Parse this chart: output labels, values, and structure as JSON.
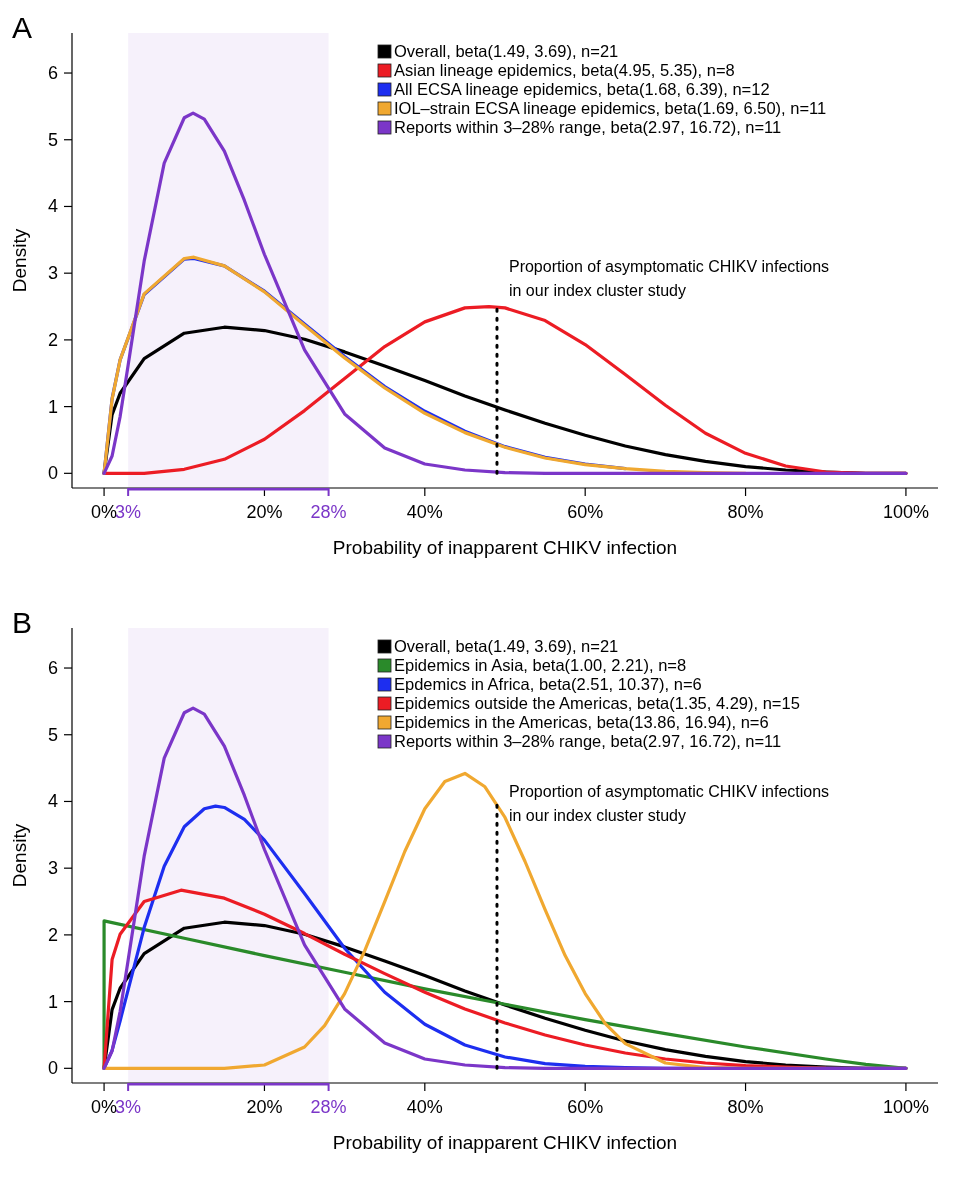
{
  "chart_data": [
    {
      "type": "line",
      "title": "A",
      "xlabel": "Probability of inapparent CHIKV infection",
      "ylabel": "Density",
      "xlim": [
        -4,
        104
      ],
      "ylim": [
        -0.22,
        6.6
      ],
      "xticks": [
        {
          "value": 0,
          "label": "0%"
        },
        {
          "value": 3,
          "label": "3%"
        },
        {
          "value": 20,
          "label": "20%"
        },
        {
          "value": 28,
          "label": "28%"
        },
        {
          "value": 40,
          "label": "40%"
        },
        {
          "value": 60,
          "label": "60%"
        },
        {
          "value": 80,
          "label": "80%"
        },
        {
          "value": 100,
          "label": "100%"
        }
      ],
      "yticks": [
        0,
        1,
        2,
        3,
        4,
        5,
        6
      ],
      "legend": "top right",
      "series": [
        {
          "name": "Overall, beta(1.49, 3.69), n=21",
          "color": "#000000",
          "x": [
            0,
            1,
            2,
            5,
            10,
            15,
            20,
            25,
            30,
            35,
            40,
            45,
            50,
            55,
            60,
            65,
            70,
            75,
            80,
            85,
            90,
            95,
            100
          ],
          "values": [
            0,
            0.88,
            1.2,
            1.72,
            2.1,
            2.19,
            2.14,
            2.01,
            1.82,
            1.61,
            1.39,
            1.16,
            0.95,
            0.75,
            0.57,
            0.41,
            0.28,
            0.18,
            0.1,
            0.05,
            0.02,
            0,
            0
          ]
        },
        {
          "name": "Asian lineage epidemics, beta(4.95, 5.35), n=8",
          "color": "#ec1c24",
          "x": [
            0,
            5,
            10,
            15,
            20,
            25,
            30,
            35,
            40,
            45,
            48,
            50,
            55,
            60,
            65,
            70,
            75,
            80,
            85,
            90,
            95,
            100
          ],
          "values": [
            0,
            0,
            0.06,
            0.21,
            0.51,
            0.94,
            1.42,
            1.9,
            2.27,
            2.48,
            2.5,
            2.48,
            2.29,
            1.93,
            1.48,
            1.02,
            0.6,
            0.3,
            0.11,
            0.02,
            0,
            0
          ]
        },
        {
          "name": "All ECSA lineage epidemics, beta(1.68, 6.39), n=12",
          "color": "#1d2ef0",
          "x": [
            0,
            1,
            2,
            5,
            10,
            11.2,
            15,
            20,
            25,
            30,
            35,
            40,
            45,
            50,
            55,
            60,
            65
          ],
          "values": [
            0,
            1.12,
            1.7,
            2.68,
            3.21,
            3.22,
            3.11,
            2.73,
            2.24,
            1.75,
            1.3,
            0.93,
            0.63,
            0.4,
            0.24,
            0.14,
            0.07
          ]
        },
        {
          "name": "IOL–strain ECSA lineage epidemics, beta(1.69, 6.50), n=11",
          "color": "#f0a830",
          "x": [
            0,
            1,
            2,
            5,
            10,
            11.2,
            15,
            20,
            25,
            30,
            35,
            40,
            45,
            50,
            55,
            60,
            65,
            70,
            75,
            80
          ],
          "values": [
            0,
            1.11,
            1.7,
            2.69,
            3.22,
            3.24,
            3.11,
            2.72,
            2.22,
            1.73,
            1.28,
            0.9,
            0.61,
            0.39,
            0.23,
            0.13,
            0.07,
            0.03,
            0.01,
            0
          ]
        },
        {
          "name": "Reports within 3–28% range, beta(2.97, 16.72), n=11",
          "color": "#7b36c8",
          "x": [
            0,
            1,
            2,
            3,
            5,
            7.5,
            10,
            11.1,
            12.5,
            15,
            17.5,
            20,
            25,
            30,
            35,
            40,
            45,
            50,
            55,
            60,
            80,
            100
          ],
          "values": [
            0,
            0.26,
            0.85,
            1.62,
            3.18,
            4.65,
            5.33,
            5.4,
            5.31,
            4.83,
            4.09,
            3.28,
            1.85,
            0.89,
            0.38,
            0.14,
            0.05,
            0.01,
            0,
            0,
            0,
            0
          ]
        }
      ],
      "ref_lines": [
        {
          "axis": "x",
          "value": 49,
          "label": "Proportion of asymptomatic CHIKV infections\nin our index cluster study",
          "line_style": "dotted",
          "color": "#000000"
        }
      ],
      "bands": [
        {
          "axis": "x",
          "from": 3,
          "to": 28,
          "color": "#7b36c8"
        }
      ]
    },
    {
      "type": "line",
      "title": "B",
      "xlabel": "Probability of inapparent CHIKV infection",
      "ylabel": "Density",
      "xlim": [
        -4,
        104
      ],
      "ylim": [
        -0.22,
        6.6
      ],
      "xticks": [
        {
          "value": 0,
          "label": "0%"
        },
        {
          "value": 3,
          "label": "3%"
        },
        {
          "value": 20,
          "label": "20%"
        },
        {
          "value": 28,
          "label": "28%"
        },
        {
          "value": 40,
          "label": "40%"
        },
        {
          "value": 60,
          "label": "60%"
        },
        {
          "value": 80,
          "label": "80%"
        },
        {
          "value": 100,
          "label": "100%"
        }
      ],
      "yticks": [
        0,
        1,
        2,
        3,
        4,
        5,
        6
      ],
      "legend": "top right",
      "series": [
        {
          "name": "Overall, beta(1.49, 3.69), n=21",
          "color": "#000000",
          "x": [
            0,
            1,
            2,
            5,
            10,
            15,
            20,
            25,
            30,
            35,
            40,
            45,
            50,
            55,
            60,
            65,
            70,
            75,
            80,
            85,
            90,
            95,
            100
          ],
          "values": [
            0,
            0.88,
            1.2,
            1.72,
            2.1,
            2.19,
            2.14,
            2.01,
            1.82,
            1.61,
            1.39,
            1.16,
            0.95,
            0.75,
            0.57,
            0.41,
            0.28,
            0.18,
            0.1,
            0.05,
            0.02,
            0,
            0
          ]
        },
        {
          "name": "Epidemics in Asia, beta(1.00, 2.21), n=8",
          "color": "#2a8a2a",
          "x": [
            0,
            0,
            10,
            20,
            30,
            40,
            50,
            60,
            70,
            80,
            90,
            95,
            100
          ],
          "values": [
            0,
            2.21,
            1.95,
            1.69,
            1.44,
            1.19,
            0.96,
            0.73,
            0.52,
            0.32,
            0.14,
            0.06,
            0
          ]
        },
        {
          "name": "Epdemics in Africa, beta(2.51, 10.37), n=6",
          "color": "#1d2ef0",
          "x": [
            0,
            1,
            2,
            5,
            7.5,
            10,
            12.5,
            13.9,
            15,
            17.5,
            20,
            25,
            30,
            35,
            40,
            45,
            50,
            55,
            60,
            65,
            70,
            80,
            100
          ],
          "values": [
            0,
            0.27,
            0.71,
            2.11,
            3.03,
            3.62,
            3.89,
            3.93,
            3.91,
            3.73,
            3.42,
            2.62,
            1.8,
            1.14,
            0.66,
            0.35,
            0.17,
            0.07,
            0.03,
            0.01,
            0,
            0,
            0
          ]
        },
        {
          "name": "Epidemics outside the Americas, beta(1.35, 4.29), n=15",
          "color": "#ec1c24",
          "x": [
            0,
            1,
            2,
            5,
            9.6,
            15,
            20,
            25,
            30,
            35,
            40,
            45,
            50,
            55,
            60,
            65,
            70,
            75,
            80,
            85,
            90
          ],
          "values": [
            0,
            1.63,
            2.01,
            2.5,
            2.67,
            2.55,
            2.31,
            2.02,
            1.71,
            1.42,
            1.14,
            0.89,
            0.68,
            0.5,
            0.35,
            0.23,
            0.14,
            0.08,
            0.04,
            0.02,
            0
          ]
        },
        {
          "name": "Epidemics in the Americas, beta(13.86, 16.94), n=6",
          "color": "#f0a830",
          "x": [
            0,
            10,
            15,
            20,
            25,
            27.5,
            30,
            32.5,
            35,
            37.5,
            40,
            42.5,
            45,
            47.5,
            50,
            52.5,
            55,
            57.5,
            60,
            62.5,
            65,
            70,
            75,
            80,
            100
          ],
          "values": [
            0,
            0,
            0,
            0.05,
            0.32,
            0.64,
            1.12,
            1.76,
            2.5,
            3.25,
            3.89,
            4.3,
            4.42,
            4.22,
            3.76,
            3.1,
            2.38,
            1.69,
            1.12,
            0.67,
            0.37,
            0.08,
            0.01,
            0,
            0
          ]
        },
        {
          "name": "Reports within 3–28% range, beta(2.97, 16.72), n=11",
          "color": "#7b36c8",
          "x": [
            0,
            1,
            2,
            3,
            5,
            7.5,
            10,
            11.1,
            12.5,
            15,
            17.5,
            20,
            25,
            30,
            35,
            40,
            45,
            50,
            55,
            60,
            80,
            100
          ],
          "values": [
            0,
            0.26,
            0.85,
            1.62,
            3.18,
            4.65,
            5.33,
            5.4,
            5.31,
            4.83,
            4.09,
            3.28,
            1.85,
            0.89,
            0.38,
            0.14,
            0.05,
            0.01,
            0,
            0,
            0,
            0
          ]
        }
      ],
      "ref_lines": [
        {
          "axis": "x",
          "value": 49,
          "label": "Proportion of asymptomatic CHIKV infections\nin our index cluster study",
          "line_style": "dotted",
          "color": "#000000"
        }
      ],
      "bands": [
        {
          "axis": "x",
          "from": 3,
          "to": 28,
          "color": "#7b36c8"
        }
      ]
    }
  ]
}
